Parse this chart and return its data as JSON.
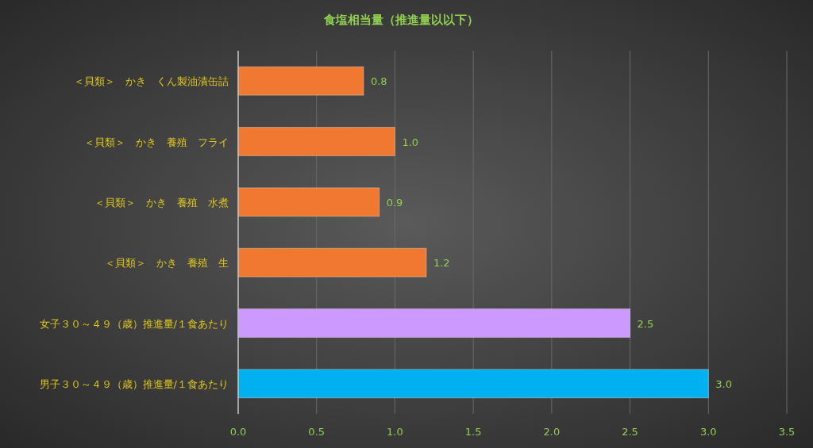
{
  "chart_data": {
    "type": "bar",
    "orientation": "horizontal",
    "title": "食塩相当量（推進量以以下）",
    "categories": [
      "＜貝類＞　かき　くん製油漬缶詰",
      "＜貝類＞　かき　養殖　フライ",
      "＜貝類＞　かき　養殖　水煮",
      "＜貝類＞　かき　養殖　生",
      "女子３０～４９（歳）推進量/１食あたり",
      "男子３０～４９（歳）推進量/１食あたり"
    ],
    "values": [
      0.8,
      1.0,
      0.9,
      1.2,
      2.5,
      3.0
    ],
    "value_labels": [
      "0.8",
      "1.0",
      "0.9",
      "1.2",
      "2.5",
      "3.0"
    ],
    "colors": [
      "#f07830",
      "#f07830",
      "#f07830",
      "#f07830",
      "#cc99ff",
      "#00b0f0"
    ],
    "xlim": [
      0,
      3.5
    ],
    "xticks": [
      {
        "value": 0,
        "label": "0.0"
      },
      {
        "value": 0.5,
        "label": "0.5"
      },
      {
        "value": 1,
        "label": "1.0"
      },
      {
        "value": 1.5,
        "label": "1.5"
      },
      {
        "value": 2,
        "label": "2.0"
      },
      {
        "value": 2.5,
        "label": "2.5"
      },
      {
        "value": 3,
        "label": "3.0"
      },
      {
        "value": 3.5,
        "label": "3.5"
      }
    ],
    "grid": "x"
  }
}
